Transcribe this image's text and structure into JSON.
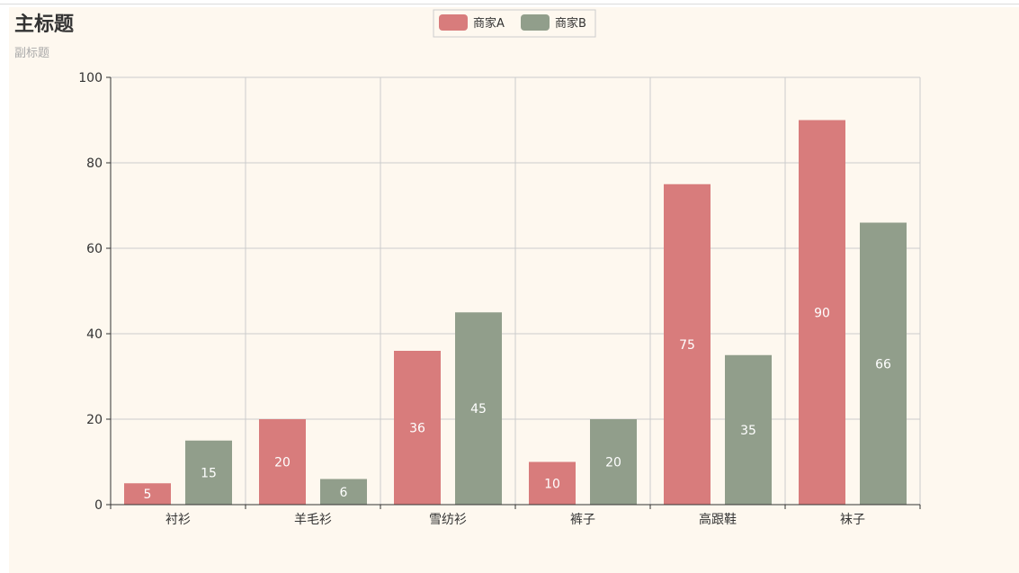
{
  "colors": {
    "background": "#fef8ef",
    "series_a": "#d87c7c",
    "series_b": "#919e8b",
    "grid": "#cccccc",
    "axis": "#333333"
  },
  "chart_data": {
    "type": "bar",
    "title": "主标题",
    "subtitle": "副标题",
    "categories": [
      "衬衫",
      "羊毛衫",
      "雪纺衫",
      "裤子",
      "高跟鞋",
      "袜子"
    ],
    "series": [
      {
        "name": "商家A",
        "values": [
          5,
          20,
          36,
          10,
          75,
          90
        ]
      },
      {
        "name": "商家B",
        "values": [
          15,
          6,
          45,
          20,
          35,
          66
        ]
      }
    ],
    "ylim": [
      0,
      100
    ],
    "yticks": [
      0,
      20,
      40,
      60,
      80,
      100
    ],
    "xlabel": "",
    "ylabel": "",
    "grid": true,
    "legend_position": "top-center",
    "data_labels": "inside"
  }
}
